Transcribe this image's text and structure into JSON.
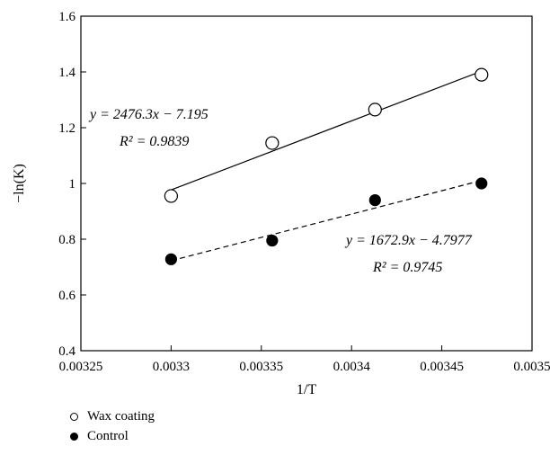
{
  "chart_data": {
    "type": "scatter",
    "xlabel": "1/T",
    "ylabel": "−ln(K)",
    "xlim": [
      0.00325,
      0.0035
    ],
    "ylim": [
      0.4,
      1.6
    ],
    "x_ticks": [
      0.00325,
      0.0033,
      0.00335,
      0.0034,
      0.00345,
      0.0035
    ],
    "x_tick_labels": [
      "0.00325",
      "0.0033",
      "0.00335",
      "0.0034",
      "0.00345",
      "0.0035"
    ],
    "y_ticks": [
      0.4,
      0.6,
      0.8,
      1.0,
      1.2,
      1.4,
      1.6
    ],
    "y_tick_labels": [
      "0.4",
      "0.6",
      "0.8",
      "1",
      "1.2",
      "1.4",
      "1.6"
    ],
    "grid": false,
    "legend_position": "bottom-left",
    "series": [
      {
        "name": "Wax coating",
        "marker": "open-circle",
        "trendline": "solid",
        "x": [
          0.0033,
          0.003356,
          0.003413,
          0.003472
        ],
        "y": [
          0.955,
          1.145,
          1.265,
          1.39
        ],
        "fit": {
          "slope": 2476.3,
          "intercept": -7.195
        },
        "equation": "y = 2476.3x − 7.195",
        "r2_label": "R² = 0.9839"
      },
      {
        "name": "Control",
        "marker": "filled-circle",
        "trendline": "dashed",
        "x": [
          0.0033,
          0.003356,
          0.003413,
          0.003472
        ],
        "y": [
          0.728,
          0.795,
          0.94,
          1.0
        ],
        "fit": {
          "slope": 1672.9,
          "intercept": -4.7977
        },
        "equation": "y = 1672.9x − 4.7977",
        "r2_label": "R² = 0.9745"
      }
    ]
  }
}
